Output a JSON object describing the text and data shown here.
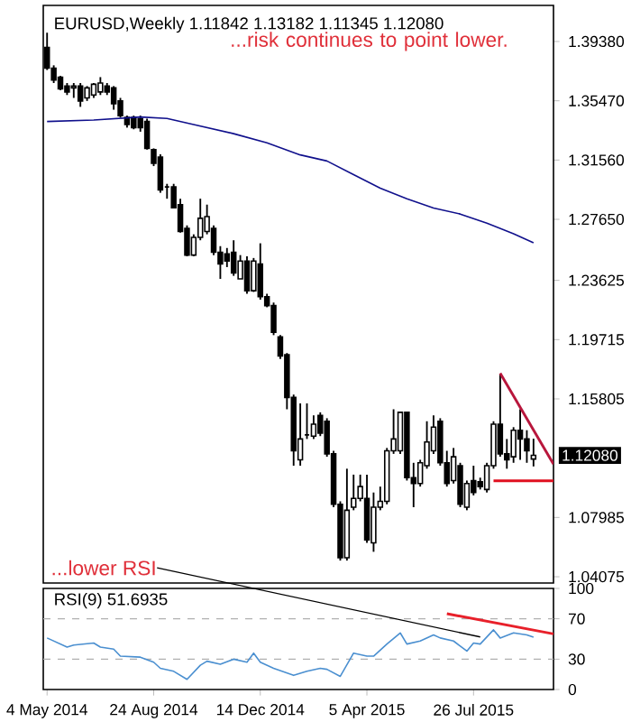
{
  "chart_data": [
    {
      "type": "candlestick",
      "title": "EURUSD,Weekly 1.11842 1.13182 1.11345 1.12080",
      "x": [
        "2014-05-04",
        "2014-05-11",
        "2014-05-18",
        "2014-05-25",
        "2014-06-01",
        "2014-06-08",
        "2014-06-15",
        "2014-06-22",
        "2014-06-29",
        "2014-07-06",
        "2014-07-13",
        "2014-07-20",
        "2014-07-27",
        "2014-08-03",
        "2014-08-10",
        "2014-08-17",
        "2014-08-24",
        "2014-08-31",
        "2014-09-07",
        "2014-09-14",
        "2014-09-21",
        "2014-09-28",
        "2014-10-05",
        "2014-10-12",
        "2014-10-19",
        "2014-10-26",
        "2014-11-02",
        "2014-11-09",
        "2014-11-16",
        "2014-11-23",
        "2014-11-30",
        "2014-12-07",
        "2014-12-14",
        "2014-12-21",
        "2014-12-28",
        "2015-01-04",
        "2015-01-11",
        "2015-01-18",
        "2015-01-25",
        "2015-02-01",
        "2015-02-08",
        "2015-02-15",
        "2015-02-22",
        "2015-03-01",
        "2015-03-08",
        "2015-03-15",
        "2015-03-22",
        "2015-03-29",
        "2015-04-05",
        "2015-04-12",
        "2015-04-19",
        "2015-04-26",
        "2015-05-03",
        "2015-05-10",
        "2015-05-17",
        "2015-05-24",
        "2015-05-31",
        "2015-06-07",
        "2015-06-14",
        "2015-06-21",
        "2015-06-28",
        "2015-07-05",
        "2015-07-12",
        "2015-07-19",
        "2015-07-26",
        "2015-08-02",
        "2015-08-09",
        "2015-08-16",
        "2015-08-23",
        "2015-08-30",
        "2015-09-06",
        "2015-09-13",
        "2015-09-20",
        "2015-09-27"
      ],
      "ohlc": [
        [
          1.3899,
          1.3996,
          1.375,
          1.3762
        ],
        [
          1.3762,
          1.3781,
          1.3664,
          1.3683
        ],
        [
          1.3703,
          1.3711,
          1.3617,
          1.3625
        ],
        [
          1.3644,
          1.3664,
          1.3585,
          1.3605
        ],
        [
          1.3632,
          1.3664,
          1.3566,
          1.3644
        ],
        [
          1.3644,
          1.3664,
          1.3507,
          1.3546
        ],
        [
          1.3566,
          1.3644,
          1.3546,
          1.3632
        ],
        [
          1.3585,
          1.3664,
          1.3566,
          1.3656
        ],
        [
          1.3605,
          1.3703,
          1.3585,
          1.3664
        ],
        [
          1.3644,
          1.3664,
          1.3585,
          1.3605
        ],
        [
          1.3632,
          1.3644,
          1.3488,
          1.3527
        ],
        [
          1.3546,
          1.3566,
          1.3437,
          1.3449
        ],
        [
          1.3437,
          1.3449,
          1.337,
          1.339
        ],
        [
          1.3437,
          1.3449,
          1.3359,
          1.337
        ],
        [
          1.3429,
          1.3449,
          1.3343,
          1.337
        ],
        [
          1.341,
          1.3429,
          1.3225,
          1.3233
        ],
        [
          1.3225,
          1.3233,
          1.3116,
          1.3135
        ],
        [
          1.3175,
          1.3194,
          1.294,
          1.2959
        ],
        [
          1.2979,
          1.2999,
          1.2901,
          1.2979
        ],
        [
          1.2979,
          1.2999,
          1.2842,
          1.2842
        ],
        [
          1.2862,
          1.2901,
          1.2678,
          1.2685
        ],
        [
          1.2705,
          1.2725,
          1.2521,
          1.2529
        ],
        [
          1.2529,
          1.2666,
          1.2521,
          1.2646
        ],
        [
          1.2646,
          1.2901,
          1.2627,
          1.2772
        ],
        [
          1.2685,
          1.2862,
          1.2666,
          1.2783
        ],
        [
          1.2705,
          1.2725,
          1.2529,
          1.2548
        ],
        [
          1.2548,
          1.2588,
          1.2372,
          1.247
        ],
        [
          1.2537,
          1.2576,
          1.245,
          1.249
        ],
        [
          1.2548,
          1.2627,
          1.2392,
          1.2411
        ],
        [
          1.2372,
          1.2529,
          1.2372,
          1.249
        ],
        [
          1.249,
          1.2521,
          1.2274,
          1.2294
        ],
        [
          1.2294,
          1.251,
          1.2286,
          1.249
        ],
        [
          1.247,
          1.2607,
          1.2235,
          1.2255
        ],
        [
          1.2255,
          1.2274,
          1.2185,
          1.2196
        ],
        [
          1.2196,
          1.2216,
          1.2001,
          1.202
        ],
        [
          1.1989,
          1.2001,
          1.1844,
          1.1864
        ],
        [
          1.1872,
          1.1883,
          1.1512,
          1.159
        ],
        [
          1.159,
          1.1609,
          1.114,
          1.1238
        ],
        [
          1.1179,
          1.1551,
          1.114,
          1.1316
        ],
        [
          1.1343,
          1.1551,
          1.1316,
          1.1343
        ],
        [
          1.1335,
          1.1472,
          1.1316,
          1.1414
        ],
        [
          1.1472,
          1.1492,
          1.1335,
          1.1355
        ],
        [
          1.1433,
          1.1453,
          1.1199,
          1.1218
        ],
        [
          1.1218,
          1.1238,
          1.0866,
          1.0885
        ],
        [
          1.0885,
          1.0905,
          1.0514,
          1.0533
        ],
        [
          1.0533,
          1.112,
          1.0514,
          1.0846
        ],
        [
          1.0866,
          1.1081,
          1.0846,
          1.0924
        ],
        [
          1.0924,
          1.1081,
          1.0905,
          1.1002
        ],
        [
          1.0924,
          1.1081,
          1.0631,
          1.0651
        ],
        [
          1.0631,
          1.0963,
          1.0572,
          1.0866
        ],
        [
          1.0866,
          1.1002,
          1.0846,
          1.0905
        ],
        [
          1.0905,
          1.1257,
          1.0885,
          1.1238
        ],
        [
          1.1238,
          1.1512,
          1.1218,
          1.1316
        ],
        [
          1.1238,
          1.1492,
          1.1218,
          1.1492
        ],
        [
          1.1492,
          1.1492,
          1.1042,
          1.1061
        ],
        [
          1.1061,
          1.1159,
          1.0866,
          1.1022
        ],
        [
          1.1022,
          1.1179,
          1.1002,
          1.1159
        ],
        [
          1.114,
          1.1433,
          1.112,
          1.1296
        ],
        [
          1.1238,
          1.1472,
          1.1218,
          1.1394
        ],
        [
          1.1433,
          1.1453,
          1.114,
          1.1159
        ],
        [
          1.1159,
          1.1238,
          1.1002,
          1.1022
        ],
        [
          1.1042,
          1.1257,
          1.1022,
          1.1199
        ],
        [
          1.114,
          1.1159,
          1.0866,
          1.0885
        ],
        [
          1.0866,
          1.1042,
          1.0846,
          1.1022
        ],
        [
          1.1042,
          1.114,
          1.0944,
          1.0963
        ],
        [
          1.1034,
          1.1061,
          1.0983,
          1.1002
        ],
        [
          1.0983,
          1.1159,
          1.0963,
          1.114
        ],
        [
          1.114,
          1.1433,
          1.112,
          1.1414
        ],
        [
          1.1414,
          1.1746,
          1.1199,
          1.1218
        ],
        [
          1.1218,
          1.1316,
          1.112,
          1.1179
        ],
        [
          1.1199,
          1.1394,
          1.1159,
          1.1374
        ],
        [
          1.1374,
          1.1512,
          1.1179,
          1.1316
        ],
        [
          1.1316,
          1.1374,
          1.1159,
          1.1238
        ],
        [
          1.1184,
          1.1318,
          1.1135,
          1.1208
        ]
      ],
      "series": [
        {
          "type": "line",
          "color": "#10108c",
          "x": [
            "2014-05-04",
            "2014-06-22",
            "2014-08-10",
            "2014-09-07",
            "2014-10-05",
            "2014-11-16",
            "2014-12-21",
            "2015-01-25",
            "2015-02-22",
            "2015-03-22",
            "2015-04-19",
            "2015-05-17",
            "2015-06-14",
            "2015-07-12",
            "2015-08-09",
            "2015-09-06",
            "2015-09-27"
          ],
          "values": [
            1.341,
            1.342,
            1.344,
            1.343,
            1.339,
            1.333,
            1.327,
            1.319,
            1.315,
            1.306,
            1.297,
            1.29,
            1.284,
            1.28,
            1.274,
            1.267,
            1.261
          ]
        },
        {
          "type": "line",
          "color": "#b8163c",
          "x": [
            "2015-08-23",
            "2015-10-18"
          ],
          "values": [
            1.175,
            1.115
          ]
        },
        {
          "type": "line",
          "color": "#e01020",
          "x": [
            "2015-08-16",
            "2015-10-18"
          ],
          "values": [
            1.104,
            1.104
          ]
        }
      ],
      "xlim": [
        "2014-04-30",
        "2015-10-18"
      ],
      "ylim": [
        1.0366,
        1.4176
      ],
      "yticks": [
        {
          "value": 1.04075,
          "label": "1.04075"
        },
        {
          "value": 1.07985,
          "label": "1.07985"
        },
        {
          "value": 1.15805,
          "label": "1.15805"
        },
        {
          "value": 1.19715,
          "label": "1.19715"
        },
        {
          "value": 1.23625,
          "label": "1.23625"
        },
        {
          "value": 1.2765,
          "label": "1.27650"
        },
        {
          "value": 1.3156,
          "label": "1.31560"
        },
        {
          "value": 1.3547,
          "label": "1.35470"
        },
        {
          "value": 1.3938,
          "label": "1.39380"
        }
      ],
      "tick_labels": "y",
      "annotations": [
        "...risk continues to point lower.",
        "1.12080"
      ]
    },
    {
      "type": "line",
      "title": "RSI(9) 51.6935",
      "series": [
        {
          "type": "line",
          "color": "#4a8fd0",
          "x": [
            "2014-05-04",
            "2014-05-25",
            "2014-06-01",
            "2014-06-22",
            "2014-06-29",
            "2014-07-13",
            "2014-07-20",
            "2014-08-10",
            "2014-08-24",
            "2014-08-31",
            "2014-09-14",
            "2014-09-28",
            "2014-10-12",
            "2014-10-19",
            "2014-11-02",
            "2014-11-16",
            "2014-11-30",
            "2014-12-07",
            "2014-12-14",
            "2014-12-28",
            "2015-01-18",
            "2015-02-01",
            "2015-02-15",
            "2015-02-22",
            "2015-03-08",
            "2015-03-22",
            "2015-04-05",
            "2015-04-12",
            "2015-04-26",
            "2015-05-10",
            "2015-05-17",
            "2015-05-31",
            "2015-06-14",
            "2015-06-21",
            "2015-07-05",
            "2015-07-19",
            "2015-07-26",
            "2015-08-02",
            "2015-08-16",
            "2015-08-23",
            "2015-09-06",
            "2015-09-20",
            "2015-09-27"
          ],
          "values": [
            51,
            42,
            44,
            46,
            42,
            40,
            33,
            32,
            27,
            21,
            18,
            10,
            24,
            28,
            25,
            30,
            27,
            36,
            27,
            21,
            14,
            18,
            21,
            20,
            13,
            36,
            33,
            33,
            45,
            56,
            45,
            48,
            54,
            51,
            48,
            38,
            46,
            45,
            59,
            51,
            56,
            54,
            51.69
          ]
        },
        {
          "type": "line",
          "color": "#e8202a",
          "x": [
            "2015-06-28",
            "2015-10-18"
          ],
          "values": [
            75,
            55
          ]
        }
      ],
      "xlim": [
        "2014-04-30",
        "2015-10-18"
      ],
      "ylim": [
        0,
        100
      ],
      "xticks": [
        {
          "value": "2014-05-04",
          "label": "4 May 2014"
        },
        {
          "value": "2014-08-24",
          "label": "24 Aug 2014"
        },
        {
          "value": "2014-12-14",
          "label": "14 Dec 2014"
        },
        {
          "value": "2015-04-05",
          "label": "5 Apr 2015"
        },
        {
          "value": "2015-07-26",
          "label": "26 Jul 2015"
        }
      ],
      "yticks": [
        0,
        30,
        70,
        100
      ],
      "ref_lines": [
        {
          "axis": "y",
          "value": 70,
          "color": "#b0b0b0",
          "line_style": "dashed"
        },
        {
          "axis": "y",
          "value": 30,
          "color": "#b0b0b0",
          "line_style": "dashed"
        }
      ],
      "annotations": [
        {
          "text": "...lower RSI",
          "x": "2015-08-02",
          "y": 52
        }
      ]
    }
  ]
}
